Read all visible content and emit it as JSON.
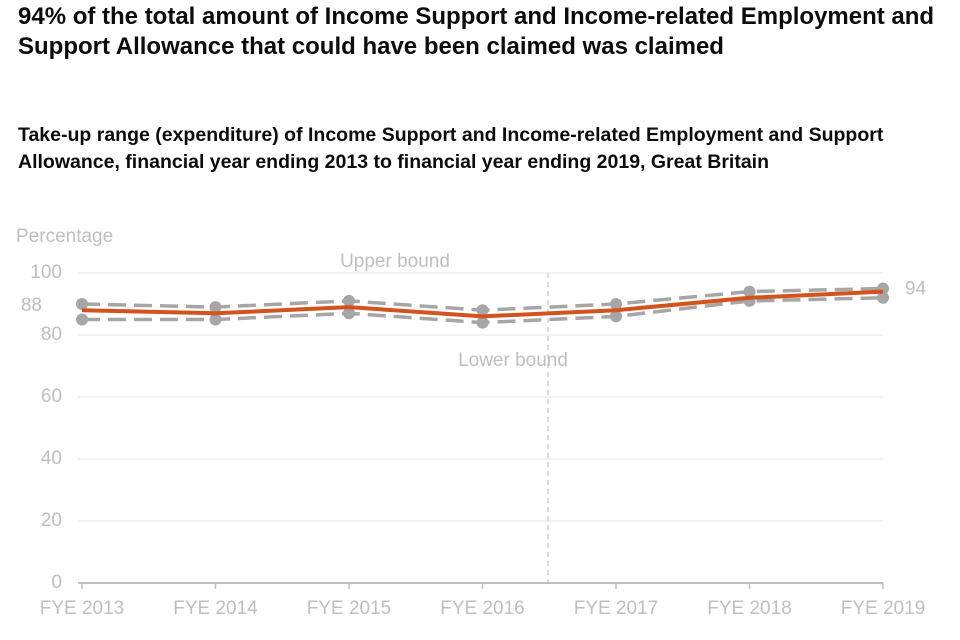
{
  "chart_data": {
    "type": "line",
    "title": "94% of the total amount of Income Support and Income-related Employment and Support Allowance that could have been claimed was claimed",
    "subtitle": "Take-up range (expenditure) of Income Support and Income-related Employment and Support Allowance, financial year ending 2013 to financial year ending 2019, Great Britain",
    "y_label": "Percentage",
    "categories": [
      "FYE 2013",
      "FYE 2014",
      "FYE 2015",
      "FYE 2016",
      "FYE 2017",
      "FYE 2018",
      "FYE 2019"
    ],
    "series": [
      {
        "color": "#d4531c",
        "values": [
          88,
          87,
          89,
          86,
          88,
          92,
          94
        ]
      },
      {
        "name": "Upper bound",
        "color": "#a6a6a6",
        "values": [
          90,
          89,
          91,
          88,
          90,
          94,
          95
        ]
      },
      {
        "name": "Lower bound",
        "color": "#a6a6a6",
        "values": [
          85,
          85,
          87,
          84,
          86,
          91,
          92
        ]
      }
    ],
    "ylim": [
      0,
      100
    ],
    "yticks": [
      0,
      20,
      40,
      60,
      80,
      100
    ],
    "grid": true
  }
}
